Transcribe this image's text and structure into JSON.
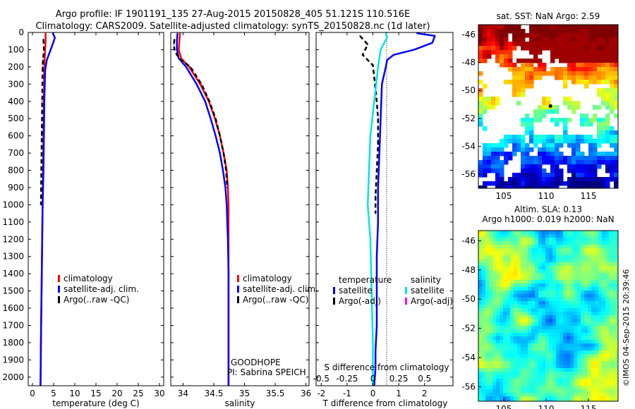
{
  "title": {
    "line1": "Argo profile: IF 1901191_135 27-Aug-2015 20150828_405 51.121S 110.516E",
    "line2": "Climatology: CARS2009. Satellite-adjusted climatology: synTS_20150828.nc (1d later)"
  },
  "colors": {
    "climatology": "#ff0000",
    "satellite": "#0000ff",
    "argo": "#000000",
    "sat_salinity": "#00e5e5",
    "argo_salinity_adj": "#ff00ff"
  },
  "chart_data": [
    {
      "type": "line",
      "id": "temperature",
      "xlabel": "temperature (deg C)",
      "ylabel": "",
      "xlim": [
        -1,
        31
      ],
      "ylim": [
        2050,
        0
      ],
      "xticks": [
        0,
        5,
        10,
        15,
        20,
        25,
        30
      ],
      "yticks": [
        0,
        100,
        200,
        300,
        400,
        500,
        600,
        700,
        800,
        900,
        1000,
        1100,
        1200,
        1300,
        1400,
        1500,
        1600,
        1700,
        1800,
        1900,
        2000
      ],
      "legend": {
        "placement": "lower-right",
        "items": [
          "climatology",
          "satellite-adj. clim.",
          "Argo(..raw -QC)"
        ]
      },
      "series": [
        {
          "name": "climatology",
          "style": "red",
          "x": [
            3.1,
            3.1,
            3.0,
            2.9,
            2.8,
            2.7,
            2.6,
            2.5,
            2.4,
            2.3,
            2.2,
            2.1,
            2.0,
            1.95,
            1.9
          ],
          "y": [
            5,
            50,
            100,
            150,
            200,
            400,
            600,
            800,
            1000,
            1200,
            1400,
            1600,
            1800,
            1950,
            2050
          ]
        },
        {
          "name": "satellite-adj. clim.",
          "style": "blue",
          "x": [
            4.8,
            5.3,
            4.9,
            4.3,
            3.4,
            3.0,
            2.8,
            2.7,
            2.6,
            2.4,
            2.3,
            2.2,
            2.1,
            2.0,
            1.95,
            1.9
          ],
          "y": [
            5,
            30,
            60,
            100,
            160,
            220,
            400,
            600,
            800,
            1000,
            1200,
            1400,
            1600,
            1800,
            1950,
            2050
          ]
        },
        {
          "name": "Argo(..raw -QC)",
          "style": "black-dash",
          "x": [
            2.6,
            2.7,
            2.5,
            2.4,
            2.3,
            2.2,
            2.1,
            2.0
          ],
          "y": [
            40,
            100,
            160,
            200,
            400,
            600,
            800,
            1000
          ]
        }
      ]
    },
    {
      "type": "line",
      "id": "salinity",
      "xlabel": "salinity",
      "ylabel": "",
      "xlim": [
        33.8,
        36.05
      ],
      "ylim": [
        2050,
        0
      ],
      "xticks": [
        34,
        34.5,
        35,
        35.5,
        36
      ],
      "legend": {
        "placement": "lower-right",
        "items": [
          "climatology",
          "satellite-adj. clim.",
          "Argo(..raw -QC)"
        ]
      },
      "annotation": [
        "GOODHOPE",
        "PI: Sabrina SPEICH"
      ],
      "series": [
        {
          "name": "climatology",
          "style": "red",
          "x": [
            33.95,
            33.94,
            33.93,
            33.97,
            34.1,
            34.28,
            34.42,
            34.52,
            34.6,
            34.66,
            34.71,
            34.73,
            34.74,
            34.74,
            34.74,
            34.74,
            34.74
          ],
          "y": [
            5,
            50,
            100,
            150,
            200,
            300,
            400,
            500,
            600,
            700,
            800,
            900,
            1000,
            1100,
            1200,
            1600,
            2050
          ]
        },
        {
          "name": "satellite-adj. clim.",
          "style": "blue",
          "x": [
            33.91,
            33.9,
            33.9,
            33.93,
            34.05,
            34.22,
            34.36,
            34.45,
            34.53,
            34.6,
            34.65,
            34.69,
            34.71,
            34.72,
            34.73,
            34.74,
            34.74,
            34.74
          ],
          "y": [
            5,
            50,
            100,
            150,
            200,
            300,
            400,
            500,
            600,
            700,
            800,
            900,
            1000,
            1100,
            1200,
            1400,
            1800,
            2050
          ]
        },
        {
          "name": "Argo(..raw -QC)",
          "style": "black-dash",
          "x": [
            33.86,
            33.85,
            33.86,
            33.9,
            33.97,
            34.12,
            34.3,
            34.43,
            34.53,
            34.6,
            34.66,
            34.7,
            34.72
          ],
          "y": [
            40,
            70,
            100,
            130,
            160,
            200,
            300,
            400,
            500,
            600,
            700,
            800,
            900
          ]
        }
      ]
    },
    {
      "type": "line",
      "id": "difference",
      "xlabel": "T difference from climatology",
      "xlabel2": "S difference from climatology",
      "ylabel": "",
      "xlim": [
        -2.2,
        3.1
      ],
      "ylim": [
        2050,
        0
      ],
      "xticks": [
        -2,
        -1,
        0,
        1,
        2
      ],
      "x2ticks": [
        "-0.5",
        "-0.25",
        "0",
        "0.25",
        "0.5"
      ],
      "x2tick_pos": [
        -2,
        -1,
        0,
        1,
        2
      ],
      "legend": {
        "placement": "lower",
        "groups": [
          {
            "title": "temperature",
            "items": [
              "satellite",
              "Argo(-adj)"
            ]
          },
          {
            "title": "salinity",
            "items": [
              "satellite",
              "Argo(-adj)"
            ]
          }
        ]
      },
      "series": [
        {
          "name": "temperature satellite",
          "style": "blue",
          "x": [
            1.7,
            2.4,
            2.3,
            1.6,
            0.8,
            0.55,
            0.5,
            0.35,
            0.3,
            0.25,
            0.2,
            0.2,
            0.15,
            0.15,
            0.15,
            0.1,
            0.1,
            0.05
          ],
          "y": [
            5,
            20,
            60,
            100,
            130,
            160,
            200,
            300,
            500,
            700,
            900,
            1100,
            1300,
            1500,
            1700,
            1850,
            1950,
            2050
          ]
        },
        {
          "name": "temperature Argo(-adj)",
          "style": "black-dash",
          "x": [
            -0.5,
            -0.2,
            -0.4,
            0.0,
            0.05,
            0.1,
            0.15,
            0.2,
            0.2,
            0.15,
            0.1,
            0.1
          ],
          "y": [
            20,
            70,
            130,
            190,
            260,
            330,
            400,
            500,
            650,
            800,
            950,
            1050
          ]
        },
        {
          "name": "salinity satellite",
          "style": "cyan",
          "x": [
            0.5,
            0.55,
            0.3,
            0.2,
            0.05,
            -0.1,
            -0.15,
            -0.2,
            -0.1,
            -0.05,
            0.0,
            0.0
          ],
          "y": [
            5,
            30,
            100,
            200,
            400,
            600,
            800,
            1000,
            1200,
            1500,
            1800,
            2050
          ]
        },
        {
          "name": "salinity Argo(-adj)",
          "style": "magenta",
          "x": [],
          "y": []
        }
      ]
    },
    {
      "type": "heatmap",
      "id": "sst-map",
      "title": "sat. SST: NaN Argo: 2.59",
      "xlim": [
        102,
        118.5
      ],
      "ylim": [
        -57,
        -45.3
      ],
      "xticks": [
        105,
        110,
        115
      ],
      "yticks": [
        -46,
        -48,
        -50,
        -52,
        -54,
        -56
      ]
    },
    {
      "type": "heatmap",
      "id": "sla-map",
      "title": "Altim. SLA: 0.13",
      "subtitle": "Argo h1000: 0.019 h2000: NaN",
      "xlim": [
        102,
        118.5
      ],
      "ylim": [
        -57,
        -45.3
      ],
      "xticks": [
        105,
        110,
        115
      ],
      "yticks": [
        -46,
        -48,
        -50,
        -52,
        -54,
        -56
      ],
      "side_label": "©IMOS 04-Sep-2015 20:39:46"
    }
  ]
}
